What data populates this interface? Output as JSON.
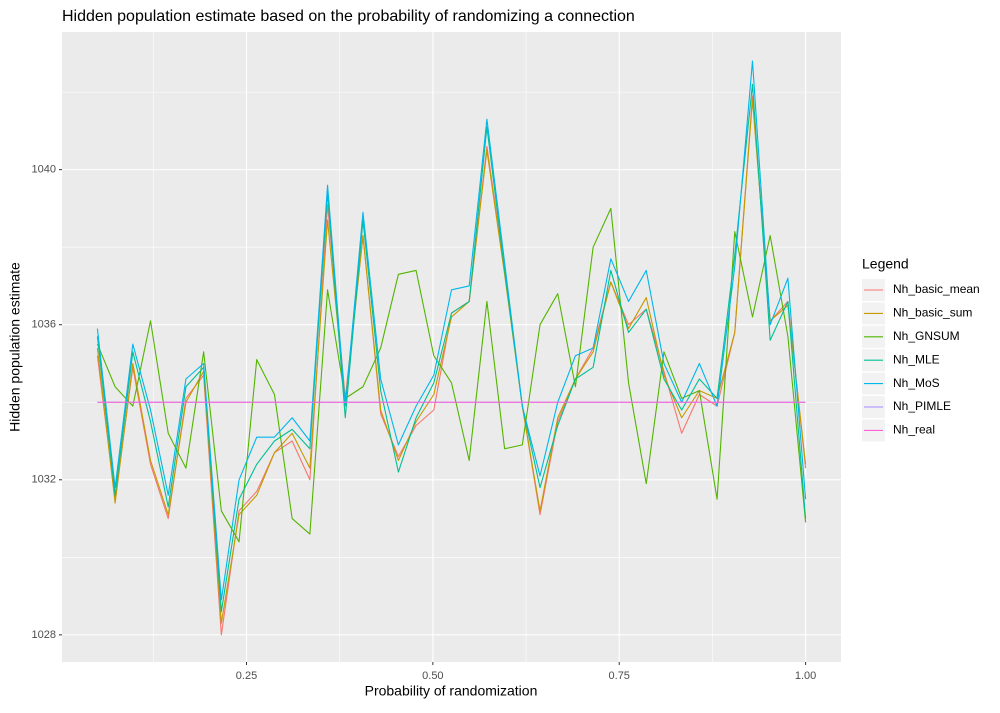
{
  "chart_data": {
    "type": "line",
    "title": "Hidden population estimate based on the probability of randomizing a connection",
    "x_label": "Probability of randomization",
    "y_label": "Hidden population estimate",
    "legend_title": "Legend",
    "legend_position": "right",
    "grid": true,
    "xlim": [
      0.0025,
      1.0475
    ],
    "ylim": [
      1027.3,
      1043.55
    ],
    "xticks": [
      0.25,
      {
        "value": 0.5,
        "label": "0.50"
      },
      0.75,
      {
        "value": 1.0,
        "label": "1.00"
      }
    ],
    "xminorticks": [
      0.125,
      0.375,
      0.625,
      0.875
    ],
    "yticks": [
      1028,
      1032,
      1036,
      1040
    ],
    "yminorticks": [
      1030,
      1034,
      1038,
      1042
    ],
    "x": [
      0.05,
      0.07375,
      0.0975,
      0.12125,
      0.145,
      0.16875,
      0.1925,
      0.21625,
      0.24,
      0.26375,
      0.2875,
      0.31125,
      0.335,
      0.35875,
      0.3825,
      0.40625,
      0.43,
      0.45375,
      0.4775,
      0.50125,
      0.525,
      0.54875,
      0.5725,
      0.59625,
      0.62,
      0.64375,
      0.6675,
      0.69125,
      0.715,
      0.73875,
      0.7625,
      0.78625,
      0.81,
      0.83375,
      0.8575,
      0.88125,
      0.905,
      0.92875,
      0.9525,
      0.97625,
      1.0
    ],
    "series": [
      {
        "name": "Nh_basic_mean",
        "color": "#F8766D",
        "values": [
          1035.2,
          1031.5,
          1034.9,
          1032.4,
          1031.0,
          1034.1,
          1034.7,
          1028.0,
          1031.2,
          1031.7,
          1032.7,
          1033.0,
          1032.0,
          1039.1,
          1034.1,
          1038.3,
          1033.7,
          1032.6,
          1033.4,
          1033.8,
          1036.3,
          1036.6,
          1040.6,
          1037.4,
          1033.9,
          1031.1,
          1033.5,
          1034.6,
          1035.4,
          1037.1,
          1036.0,
          1036.4,
          1034.8,
          1033.2,
          1034.2,
          1033.9,
          1035.8,
          1041.9,
          1036.1,
          1036.6,
          1032.3
        ]
      },
      {
        "name": "Nh_basic_sum",
        "color": "#C49A00",
        "values": [
          1035.4,
          1031.4,
          1035.0,
          1032.5,
          1031.1,
          1034.0,
          1034.8,
          1028.3,
          1031.1,
          1031.6,
          1032.7,
          1033.2,
          1032.3,
          1038.7,
          1034.0,
          1038.3,
          1033.8,
          1032.5,
          1033.5,
          1034.2,
          1036.2,
          1036.6,
          1040.5,
          1037.3,
          1033.9,
          1031.2,
          1033.6,
          1034.6,
          1035.3,
          1037.1,
          1035.9,
          1036.7,
          1034.7,
          1033.6,
          1034.3,
          1034.1,
          1035.8,
          1041.8,
          1036.1,
          1036.5,
          1032.4
        ]
      },
      {
        "name": "Nh_GNSUM",
        "color": "#53B400",
        "values": [
          1035.5,
          1034.4,
          1033.9,
          1036.1,
          1033.2,
          1032.3,
          1035.3,
          1031.2,
          1030.4,
          1035.1,
          1034.2,
          1031.0,
          1030.6,
          1036.9,
          1034.1,
          1034.4,
          1035.4,
          1037.3,
          1037.4,
          1035.2,
          1034.5,
          1032.5,
          1036.6,
          1032.8,
          1032.9,
          1036.0,
          1036.8,
          1034.4,
          1038.0,
          1039.0,
          1034.5,
          1031.9,
          1035.3,
          1034.1,
          1034.3,
          1031.5,
          1038.4,
          1036.2,
          1038.3,
          1035.7,
          1030.9
        ]
      },
      {
        "name": "Nh_MLE",
        "color": "#00C094",
        "values": [
          1035.7,
          1031.6,
          1035.3,
          1033.5,
          1031.3,
          1034.4,
          1034.9,
          1028.6,
          1031.5,
          1032.4,
          1033.0,
          1033.3,
          1032.8,
          1039.4,
          1033.6,
          1038.7,
          1034.3,
          1032.2,
          1033.6,
          1034.5,
          1036.3,
          1036.6,
          1041.1,
          1037.4,
          1033.9,
          1031.8,
          1033.4,
          1034.6,
          1034.9,
          1037.4,
          1035.8,
          1036.4,
          1034.6,
          1033.8,
          1034.6,
          1034.1,
          1037.8,
          1042.2,
          1035.6,
          1036.6,
          1031.0
        ]
      },
      {
        "name": "Nh_MoS",
        "color": "#00B6EB",
        "values": [
          1035.9,
          1031.8,
          1035.5,
          1033.8,
          1031.6,
          1034.6,
          1035.0,
          1028.9,
          1032.0,
          1033.1,
          1033.1,
          1033.6,
          1033.0,
          1039.6,
          1033.9,
          1038.9,
          1034.6,
          1032.9,
          1033.9,
          1034.7,
          1036.9,
          1037.0,
          1041.3,
          1037.6,
          1033.9,
          1032.1,
          1034.0,
          1035.2,
          1035.4,
          1037.7,
          1036.6,
          1037.4,
          1035.0,
          1034.0,
          1035.0,
          1033.9,
          1037.5,
          1042.8,
          1036.0,
          1037.2,
          1031.5
        ]
      },
      {
        "name": "Nh_PIMLE",
        "color": "#A58AFF",
        "values": [
          1034,
          1034,
          1034,
          1034,
          1034,
          1034,
          1034,
          1034,
          1034,
          1034,
          1034,
          1034,
          1034,
          1034,
          1034,
          1034,
          1034,
          1034,
          1034,
          1034,
          1034,
          1034,
          1034,
          1034,
          1034,
          1034,
          1034,
          1034,
          1034,
          1034,
          1034,
          1034,
          1034,
          1034,
          1034,
          1034,
          1034,
          1034,
          1034,
          1034,
          1034
        ]
      },
      {
        "name": "Nh_real",
        "color": "#FB61D7",
        "values": [
          1034,
          1034,
          1034,
          1034,
          1034,
          1034,
          1034,
          1034,
          1034,
          1034,
          1034,
          1034,
          1034,
          1034,
          1034,
          1034,
          1034,
          1034,
          1034,
          1034,
          1034,
          1034,
          1034,
          1034,
          1034,
          1034,
          1034,
          1034,
          1034,
          1034,
          1034,
          1034,
          1034,
          1034,
          1034,
          1034,
          1034,
          1034,
          1034,
          1034,
          1034
        ]
      }
    ]
  }
}
